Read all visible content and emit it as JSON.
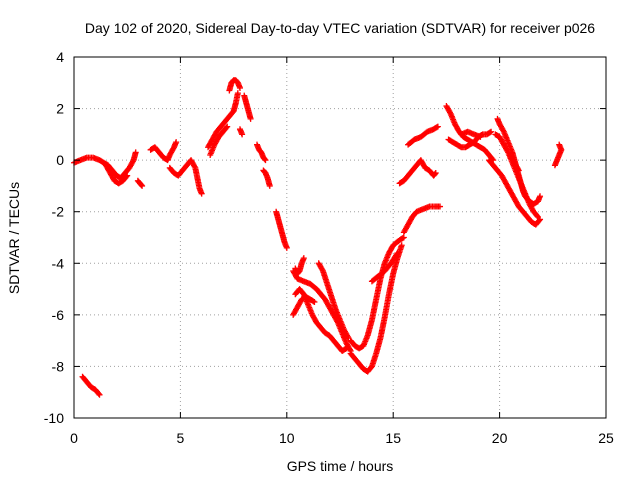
{
  "chart_data": {
    "type": "scatter",
    "title": "Day 102 of 2020, Sidereal Day-to-day VTEC variation (SDTVAR) for receiver p026",
    "xlabel": "GPS time / hours",
    "ylabel": "SDTVAR / TECUs",
    "xlim": [
      0,
      25
    ],
    "ylim": [
      -10,
      4
    ],
    "xticks": [
      0,
      5,
      10,
      15,
      20,
      25
    ],
    "yticks": [
      -10,
      -8,
      -6,
      -4,
      -2,
      0,
      2,
      4
    ],
    "xtick_labels": [
      "0",
      "5",
      "10",
      "15",
      "20",
      "25"
    ],
    "ytick_labels": [
      "-10",
      "-8",
      "-6",
      "-4",
      "-2",
      "0",
      "2",
      "4"
    ],
    "grid": true,
    "legend": "none",
    "marker": "+",
    "color": "#ff0000",
    "series": [
      {
        "segments": [
          [
            [
              0,
              -0.1
            ],
            [
              0.3,
              0.0
            ],
            [
              0.6,
              0.1
            ],
            [
              0.9,
              0.1
            ],
            [
              1.2,
              0.0
            ],
            [
              1.4,
              -0.1
            ],
            [
              1.6,
              -0.2
            ],
            [
              1.8,
              -0.4
            ],
            [
              2.0,
              -0.6
            ],
            [
              2.2,
              -0.7
            ],
            [
              2.4,
              -0.5
            ],
            [
              2.6,
              -0.3
            ],
            [
              2.8,
              0.0
            ],
            [
              2.9,
              0.3
            ]
          ],
          [
            [
              1.5,
              -0.2
            ],
            [
              1.7,
              -0.5
            ],
            [
              1.9,
              -0.8
            ],
            [
              2.1,
              -0.9
            ],
            [
              2.3,
              -0.8
            ],
            [
              2.5,
              -0.6
            ]
          ],
          [
            [
              3.0,
              -0.8
            ],
            [
              3.1,
              -0.9
            ],
            [
              3.2,
              -1.0
            ]
          ],
          [
            [
              3.6,
              0.4
            ],
            [
              3.8,
              0.5
            ],
            [
              4.0,
              0.3
            ],
            [
              4.2,
              0.1
            ],
            [
              4.4,
              0.0
            ],
            [
              4.5,
              0.2
            ],
            [
              4.7,
              0.5
            ],
            [
              4.8,
              0.7
            ]
          ],
          [
            [
              4.5,
              -0.3
            ],
            [
              4.7,
              -0.5
            ],
            [
              4.9,
              -0.6
            ],
            [
              5.1,
              -0.4
            ],
            [
              5.3,
              -0.2
            ],
            [
              5.5,
              0.0
            ],
            [
              5.7,
              -0.3
            ],
            [
              5.8,
              -0.7
            ],
            [
              5.9,
              -1.1
            ],
            [
              6.0,
              -1.3
            ]
          ],
          [
            [
              6.3,
              0.5
            ],
            [
              6.5,
              0.8
            ],
            [
              6.7,
              1.1
            ],
            [
              6.9,
              1.3
            ],
            [
              7.1,
              1.5
            ],
            [
              7.3,
              1.7
            ],
            [
              7.5,
              1.9
            ],
            [
              7.6,
              2.2
            ],
            [
              7.7,
              2.6
            ]
          ],
          [
            [
              6.4,
              0.2
            ],
            [
              6.6,
              0.6
            ],
            [
              6.8,
              0.9
            ],
            [
              7.0,
              1.1
            ],
            [
              7.2,
              1.3
            ]
          ],
          [
            [
              7.3,
              2.7
            ],
            [
              7.4,
              3.0
            ],
            [
              7.5,
              3.1
            ],
            [
              7.6,
              3.1
            ],
            [
              7.7,
              3.0
            ],
            [
              7.8,
              2.8
            ]
          ],
          [
            [
              8.0,
              2.5
            ],
            [
              8.1,
              2.2
            ],
            [
              8.2,
              1.9
            ],
            [
              8.3,
              1.6
            ]
          ],
          [
            [
              7.8,
              1.2
            ],
            [
              7.9,
              1.0
            ]
          ],
          [
            [
              8.6,
              0.6
            ],
            [
              8.7,
              0.4
            ],
            [
              8.8,
              0.3
            ],
            [
              8.9,
              0.1
            ],
            [
              9.0,
              0.0
            ]
          ],
          [
            [
              8.9,
              -0.4
            ],
            [
              9.0,
              -0.5
            ],
            [
              9.1,
              -0.7
            ],
            [
              9.2,
              -1.0
            ]
          ],
          [
            [
              9.5,
              -2.0
            ],
            [
              9.6,
              -2.3
            ],
            [
              9.7,
              -2.6
            ],
            [
              9.8,
              -2.9
            ],
            [
              9.9,
              -3.2
            ],
            [
              10.0,
              -3.4
            ]
          ],
          [
            [
              10.3,
              -4.3
            ],
            [
              10.5,
              -4.6
            ],
            [
              10.8,
              -4.7
            ],
            [
              11.1,
              -4.8
            ],
            [
              11.4,
              -5.0
            ],
            [
              11.6,
              -5.2
            ],
            [
              11.8,
              -5.4
            ],
            [
              12.0,
              -5.7
            ],
            [
              12.2,
              -6.0
            ],
            [
              12.4,
              -6.3
            ],
            [
              12.6,
              -6.7
            ],
            [
              12.8,
              -7.1
            ],
            [
              13.0,
              -7.4
            ]
          ],
          [
            [
              10.4,
              -5.2
            ],
            [
              10.6,
              -5.0
            ],
            [
              10.8,
              -5.2
            ],
            [
              11.0,
              -5.6
            ],
            [
              11.2,
              -6.0
            ],
            [
              11.4,
              -6.3
            ],
            [
              11.6,
              -6.5
            ],
            [
              11.8,
              -6.7
            ],
            [
              12.0,
              -6.8
            ],
            [
              12.2,
              -7.0
            ],
            [
              12.4,
              -7.2
            ],
            [
              12.6,
              -7.4
            ],
            [
              12.8,
              -7.3
            ]
          ],
          [
            [
              10.3,
              -6.0
            ],
            [
              10.5,
              -5.7
            ],
            [
              10.7,
              -5.4
            ],
            [
              10.9,
              -5.3
            ],
            [
              11.1,
              -5.4
            ],
            [
              11.3,
              -5.5
            ]
          ],
          [
            [
              11.5,
              -4.0
            ],
            [
              11.7,
              -4.3
            ],
            [
              11.9,
              -4.8
            ],
            [
              12.1,
              -5.3
            ],
            [
              12.3,
              -5.8
            ],
            [
              12.5,
              -6.2
            ],
            [
              12.7,
              -6.6
            ],
            [
              12.9,
              -6.9
            ]
          ],
          [
            [
              10.4,
              -4.2
            ],
            [
              10.5,
              -4.4
            ],
            [
              10.6,
              -4.3
            ],
            [
              10.7,
              -4.0
            ],
            [
              10.8,
              -3.8
            ]
          ],
          [
            [
              13.0,
              -7.5
            ],
            [
              13.2,
              -7.7
            ],
            [
              13.4,
              -7.9
            ],
            [
              13.6,
              -8.1
            ],
            [
              13.8,
              -8.2
            ],
            [
              14.0,
              -8.0
            ],
            [
              14.2,
              -7.5
            ],
            [
              14.4,
              -6.9
            ],
            [
              14.6,
              -6.1
            ],
            [
              14.8,
              -5.2
            ],
            [
              15.0,
              -4.4
            ],
            [
              15.2,
              -3.8
            ],
            [
              15.4,
              -3.3
            ]
          ],
          [
            [
              13.0,
              -7.0
            ],
            [
              13.2,
              -7.2
            ],
            [
              13.4,
              -7.3
            ],
            [
              13.6,
              -7.2
            ],
            [
              13.8,
              -6.8
            ],
            [
              14.0,
              -6.2
            ],
            [
              14.2,
              -5.4
            ],
            [
              14.4,
              -4.6
            ],
            [
              14.6,
              -4.0
            ],
            [
              14.8,
              -3.6
            ],
            [
              15.0,
              -3.3
            ],
            [
              15.3,
              -3.1
            ],
            [
              15.5,
              -3.0
            ]
          ],
          [
            [
              14.0,
              -4.7
            ],
            [
              14.3,
              -4.5
            ],
            [
              14.6,
              -4.3
            ],
            [
              14.9,
              -4.0
            ],
            [
              15.2,
              -3.6
            ]
          ],
          [
            [
              15.5,
              -2.8
            ],
            [
              15.7,
              -2.5
            ],
            [
              15.9,
              -2.2
            ],
            [
              16.1,
              -2.0
            ],
            [
              16.4,
              -1.9
            ],
            [
              16.7,
              -1.8
            ],
            [
              17.0,
              -1.8
            ],
            [
              17.2,
              -1.8
            ]
          ],
          [
            [
              15.3,
              -0.9
            ],
            [
              15.5,
              -0.8
            ],
            [
              15.7,
              -0.6
            ],
            [
              15.9,
              -0.4
            ],
            [
              16.1,
              -0.2
            ],
            [
              16.3,
              0.0
            ],
            [
              16.5,
              -0.3
            ],
            [
              16.7,
              -0.4
            ],
            [
              16.9,
              -0.6
            ],
            [
              17.0,
              -0.5
            ]
          ],
          [
            [
              15.7,
              0.6
            ],
            [
              16.0,
              0.8
            ],
            [
              16.3,
              0.9
            ],
            [
              16.6,
              1.1
            ],
            [
              16.9,
              1.2
            ],
            [
              17.1,
              1.3
            ]
          ],
          [
            [
              17.5,
              2.1
            ],
            [
              17.7,
              1.8
            ],
            [
              17.9,
              1.4
            ],
            [
              18.1,
              1.1
            ],
            [
              18.3,
              0.9
            ],
            [
              18.5,
              0.8
            ],
            [
              18.7,
              0.7
            ],
            [
              18.9,
              0.6
            ],
            [
              19.1,
              0.5
            ],
            [
              19.3,
              0.4
            ],
            [
              19.5,
              0.2
            ],
            [
              19.7,
              0.0
            ]
          ],
          [
            [
              17.6,
              0.8
            ],
            [
              17.8,
              0.7
            ],
            [
              18.0,
              0.6
            ],
            [
              18.2,
              0.5
            ],
            [
              18.4,
              0.5
            ],
            [
              18.6,
              0.6
            ],
            [
              18.8,
              0.7
            ],
            [
              19.0,
              0.9
            ],
            [
              19.2,
              1.0
            ],
            [
              19.4,
              1.0
            ],
            [
              19.6,
              1.1
            ]
          ],
          [
            [
              18.2,
              1.0
            ],
            [
              18.5,
              1.1
            ],
            [
              18.8,
              1.0
            ],
            [
              19.1,
              0.9
            ]
          ],
          [
            [
              19.5,
              0.0
            ],
            [
              19.7,
              -0.2
            ],
            [
              19.9,
              -0.4
            ],
            [
              20.1,
              -0.6
            ],
            [
              20.3,
              -0.9
            ],
            [
              20.5,
              -1.2
            ],
            [
              20.7,
              -1.5
            ],
            [
              20.9,
              -1.8
            ],
            [
              21.1,
              -2.0
            ],
            [
              21.3,
              -2.2
            ],
            [
              21.5,
              -2.4
            ],
            [
              21.7,
              -2.5
            ],
            [
              21.9,
              -2.3
            ]
          ],
          [
            [
              19.9,
              1.6
            ],
            [
              20.0,
              1.4
            ],
            [
              20.2,
              1.1
            ],
            [
              20.4,
              0.7
            ],
            [
              20.6,
              0.3
            ],
            [
              20.7,
              0.0
            ],
            [
              20.8,
              -0.3
            ],
            [
              20.9,
              -0.6
            ],
            [
              21.0,
              -0.9
            ],
            [
              21.1,
              -1.2
            ],
            [
              21.2,
              -1.4
            ],
            [
              21.4,
              -1.6
            ],
            [
              21.6,
              -1.7
            ],
            [
              21.8,
              -1.6
            ],
            [
              21.9,
              -1.4
            ]
          ],
          [
            [
              19.8,
              1.0
            ],
            [
              20.0,
              0.9
            ],
            [
              20.2,
              0.6
            ],
            [
              20.4,
              0.3
            ],
            [
              20.6,
              -0.1
            ],
            [
              20.8,
              -0.5
            ],
            [
              21.0,
              -0.9
            ],
            [
              21.2,
              -1.3
            ],
            [
              21.4,
              -1.7
            ],
            [
              21.6,
              -2.0
            ],
            [
              21.8,
              -2.2
            ]
          ],
          [
            [
              20.5,
              0.2
            ],
            [
              20.7,
              -0.1
            ],
            [
              20.9,
              -0.4
            ]
          ],
          [
            [
              22.6,
              -0.2
            ],
            [
              22.7,
              0.0
            ],
            [
              22.8,
              0.2
            ],
            [
              22.9,
              0.4
            ],
            [
              22.8,
              0.6
            ]
          ],
          [
            [
              0.4,
              -8.4
            ],
            [
              0.6,
              -8.6
            ],
            [
              0.8,
              -8.8
            ],
            [
              1.0,
              -8.9
            ],
            [
              1.2,
              -9.1
            ]
          ]
        ]
      }
    ]
  }
}
